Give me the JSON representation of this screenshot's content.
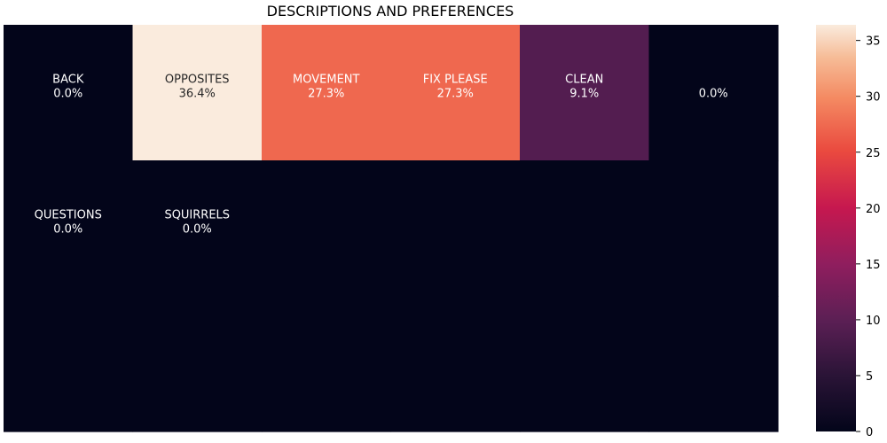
{
  "chart_data": {
    "type": "heatmap",
    "title": "DESCRIPTIONS AND PREFERENCES",
    "rows": 3,
    "cols": 6,
    "cells": [
      {
        "row": 0,
        "col": 0,
        "label": "BACK",
        "value": 0.0,
        "value_text": "0.0%"
      },
      {
        "row": 0,
        "col": 1,
        "label": "OPPOSITES",
        "value": 36.4,
        "value_text": "36.4%"
      },
      {
        "row": 0,
        "col": 2,
        "label": "MOVEMENT",
        "value": 27.3,
        "value_text": "27.3%"
      },
      {
        "row": 0,
        "col": 3,
        "label": "FIX PLEASE",
        "value": 27.3,
        "value_text": "27.3%"
      },
      {
        "row": 0,
        "col": 4,
        "label": "CLEAN",
        "value": 9.1,
        "value_text": "9.1%"
      },
      {
        "row": 0,
        "col": 5,
        "label": "",
        "value": 0.0,
        "value_text": "0.0%"
      },
      {
        "row": 1,
        "col": 0,
        "label": "QUESTIONS",
        "value": 0.0,
        "value_text": "0.0%"
      },
      {
        "row": 1,
        "col": 1,
        "label": "SQUIRRELS",
        "value": 0.0,
        "value_text": "0.0%"
      },
      {
        "row": 1,
        "col": 2,
        "label": "",
        "value": 0.0,
        "value_text": ""
      },
      {
        "row": 1,
        "col": 3,
        "label": "",
        "value": 0.0,
        "value_text": ""
      },
      {
        "row": 1,
        "col": 4,
        "label": "",
        "value": 0.0,
        "value_text": ""
      },
      {
        "row": 1,
        "col": 5,
        "label": "",
        "value": 0.0,
        "value_text": ""
      },
      {
        "row": 2,
        "col": 0,
        "label": "",
        "value": 0.0,
        "value_text": ""
      },
      {
        "row": 2,
        "col": 1,
        "label": "",
        "value": 0.0,
        "value_text": ""
      },
      {
        "row": 2,
        "col": 2,
        "label": "",
        "value": 0.0,
        "value_text": ""
      },
      {
        "row": 2,
        "col": 3,
        "label": "",
        "value": 0.0,
        "value_text": ""
      },
      {
        "row": 2,
        "col": 4,
        "label": "",
        "value": 0.0,
        "value_text": ""
      },
      {
        "row": 2,
        "col": 5,
        "label": "",
        "value": 0.0,
        "value_text": ""
      }
    ],
    "colorbar": {
      "range": [
        0,
        36.4
      ],
      "ticks": [
        "0",
        "5",
        "10",
        "15",
        "20",
        "25",
        "30",
        "35"
      ],
      "colormap": "rocket"
    },
    "grid": false,
    "legend": "colorbar-right"
  }
}
